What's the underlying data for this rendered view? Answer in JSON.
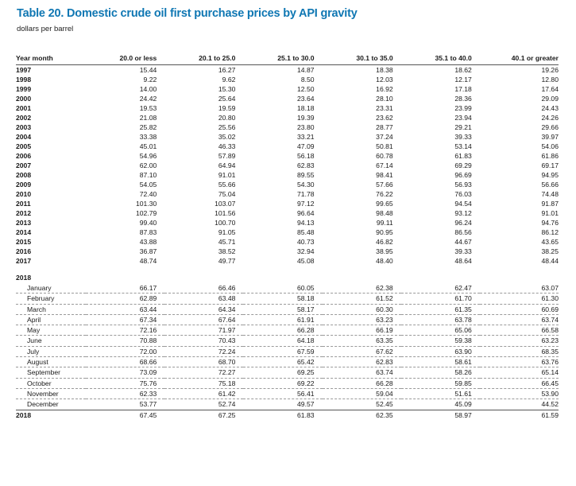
{
  "title": "Table 20. Domestic crude oil first purchase prices by API gravity",
  "subtitle": "dollars per barrel",
  "columns": [
    "Year month",
    "20.0 or less",
    "20.1 to 25.0",
    "25.1 to 30.0",
    "30.1 to 35.0",
    "35.1 to 40.0",
    "40.1 or greater"
  ],
  "annual": [
    [
      "1997",
      "15.44",
      "16.27",
      "14.87",
      "18.38",
      "18.62",
      "19.26"
    ],
    [
      "1998",
      "9.22",
      "9.62",
      "8.50",
      "12.03",
      "12.17",
      "12.80"
    ],
    [
      "1999",
      "14.00",
      "15.30",
      "12.50",
      "16.92",
      "17.18",
      "17.64"
    ],
    [
      "2000",
      "24.42",
      "25.64",
      "23.64",
      "28.10",
      "28.36",
      "29.09"
    ],
    [
      "2001",
      "19.53",
      "19.59",
      "18.18",
      "23.31",
      "23.99",
      "24.43"
    ],
    [
      "2002",
      "21.08",
      "20.80",
      "19.39",
      "23.62",
      "23.94",
      "24.26"
    ],
    [
      "2003",
      "25.82",
      "25.56",
      "23.80",
      "28.77",
      "29.21",
      "29.66"
    ],
    [
      "2004",
      "33.38",
      "35.02",
      "33.21",
      "37.24",
      "39.33",
      "39.97"
    ],
    [
      "2005",
      "45.01",
      "46.33",
      "47.09",
      "50.81",
      "53.14",
      "54.06"
    ],
    [
      "2006",
      "54.96",
      "57.89",
      "56.18",
      "60.78",
      "61.83",
      "61.86"
    ],
    [
      "2007",
      "62.00",
      "64.94",
      "62.83",
      "67.14",
      "69.29",
      "69.17"
    ],
    [
      "2008",
      "87.10",
      "91.01",
      "89.55",
      "98.41",
      "96.69",
      "94.95"
    ],
    [
      "2009",
      "54.05",
      "55.66",
      "54.30",
      "57.66",
      "56.93",
      "56.66"
    ],
    [
      "2010",
      "72.40",
      "75.04",
      "71.78",
      "76.22",
      "76.03",
      "74.48"
    ],
    [
      "2011",
      "101.30",
      "103.07",
      "97.12",
      "99.65",
      "94.54",
      "91.87"
    ],
    [
      "2012",
      "102.79",
      "101.56",
      "96.64",
      "98.48",
      "93.12",
      "91.01"
    ],
    [
      "2013",
      "99.40",
      "100.70",
      "94.13",
      "99.11",
      "96.24",
      "94.76"
    ],
    [
      "2014",
      "87.83",
      "91.05",
      "85.48",
      "90.95",
      "86.56",
      "86.12"
    ],
    [
      "2015",
      "43.88",
      "45.71",
      "40.73",
      "46.82",
      "44.67",
      "43.65"
    ],
    [
      "2016",
      "36.87",
      "38.52",
      "32.94",
      "38.95",
      "39.33",
      "38.25"
    ],
    [
      "2017",
      "48.74",
      "49.77",
      "45.08",
      "48.40",
      "48.64",
      "48.44"
    ]
  ],
  "year_block": "2018",
  "months": [
    [
      "January",
      "66.17",
      "66.46",
      "60.05",
      "62.38",
      "62.47",
      "63.07"
    ],
    [
      "February",
      "62.89",
      "63.48",
      "58.18",
      "61.52",
      "61.70",
      "61.30"
    ],
    [
      "March",
      "63.44",
      "64.34",
      "58.17",
      "60.30",
      "61.35",
      "60.69"
    ],
    [
      "April",
      "67.34",
      "67.64",
      "61.91",
      "63.23",
      "63.78",
      "63.74"
    ],
    [
      "May",
      "72.16",
      "71.97",
      "66.28",
      "66.19",
      "65.06",
      "66.58"
    ],
    [
      "June",
      "70.88",
      "70.43",
      "64.18",
      "63.35",
      "59.38",
      "63.23"
    ],
    [
      "July",
      "72.00",
      "72.24",
      "67.59",
      "67.62",
      "63.90",
      "68.35"
    ],
    [
      "August",
      "68.66",
      "68.70",
      "65.42",
      "62.83",
      "58.61",
      "63.76"
    ],
    [
      "September",
      "73.09",
      "72.27",
      "69.25",
      "63.74",
      "58.26",
      "65.14"
    ],
    [
      "October",
      "75.76",
      "75.18",
      "69.22",
      "66.28",
      "59.85",
      "66.45"
    ],
    [
      "November",
      "62.33",
      "61.42",
      "56.41",
      "59.04",
      "51.61",
      "53.90"
    ],
    [
      "December",
      "53.77",
      "52.74",
      "49.57",
      "52.45",
      "45.09",
      "44.52"
    ]
  ],
  "annual_2018": [
    "2018",
    "67.45",
    "67.25",
    "61.83",
    "62.35",
    "58.97",
    "61.59"
  ]
}
